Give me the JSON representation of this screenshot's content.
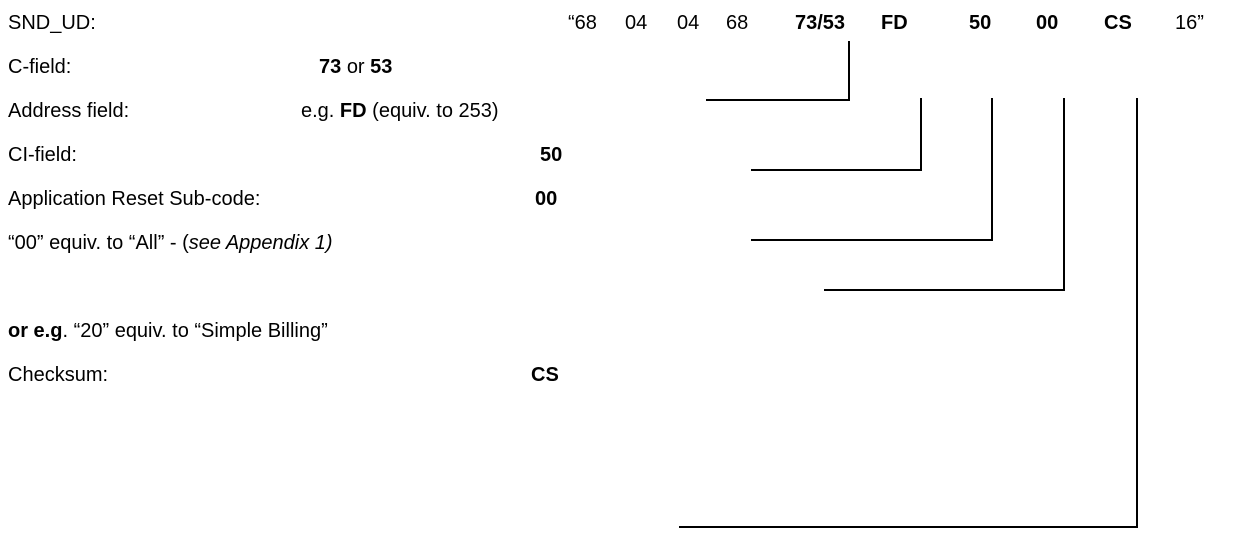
{
  "frame": {
    "label": "SND_UD:",
    "bytes": [
      "“68",
      "04",
      "04",
      "68",
      "73/53",
      "FD",
      "50",
      "00",
      "CS",
      "16”"
    ]
  },
  "rows": {
    "c_field": {
      "label": "C-field:",
      "value_a": "73",
      "or_word": "or",
      "value_b": "53"
    },
    "address_field": {
      "label": "Address field:",
      "prefix": "e.g.",
      "value": "FD",
      "suffix": "(equiv. to 253)"
    },
    "ci_field": {
      "label": "CI-field:",
      "value": "50"
    },
    "reset_subcode": {
      "label": "Application Reset Sub-code:",
      "value": "00"
    },
    "note_all": {
      "text": "“00” equiv. to “All” - (",
      "italic": "see Appendix 1)"
    },
    "note_billing": {
      "bold": "or e.g",
      "text": ". “20” equiv. to “Simple Billing”"
    },
    "checksum": {
      "label": "Checksum:",
      "value": "CS"
    }
  }
}
